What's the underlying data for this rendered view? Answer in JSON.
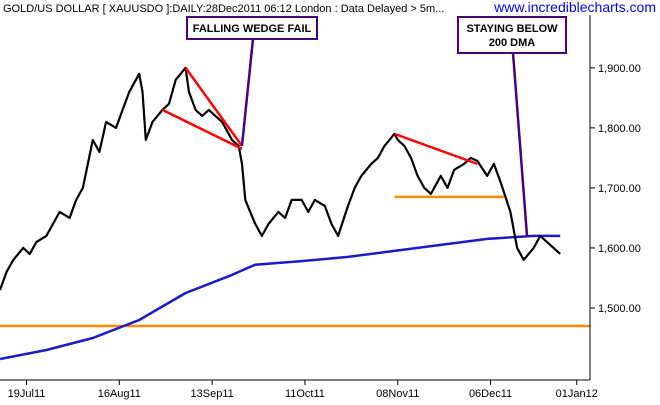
{
  "chart_data": {
    "type": "line",
    "title": "GOLD/US DOLLAR [ XAUUSDO ]:DAILY:28Dec2011 06:12 London : Data Delayed > 5m...",
    "watermark": "www.incrediblecharts.com",
    "x_tick_labels": [
      "19Jul11",
      "16Aug11",
      "13Sep11",
      "11Oct11",
      "08Nov11",
      "06Dec11",
      "01Jan12"
    ],
    "y_tick_labels": [
      "1,900.00",
      "1,800.00",
      "1,700.00",
      "1,600.00",
      "1,500.00"
    ],
    "y_ticks": [
      1900,
      1800,
      1700,
      1600,
      1500
    ],
    "ylim": [
      1380,
      1988
    ],
    "xlim": [
      "2011-07-11",
      "2012-01-05"
    ],
    "grid": false,
    "colors": {
      "price": "#000000",
      "ma": "#1a1acc",
      "trendline": "#ff0000",
      "support": "#ff8c00",
      "annotation": "#4b0082",
      "watermark": "#0000ff"
    },
    "series": [
      {
        "role": "price",
        "x": [
          "2011-07-11",
          "2011-07-13",
          "2011-07-15",
          "2011-07-18",
          "2011-07-20",
          "2011-07-22",
          "2011-07-25",
          "2011-07-27",
          "2011-07-29",
          "2011-08-01",
          "2011-08-03",
          "2011-08-05",
          "2011-08-08",
          "2011-08-10",
          "2011-08-12",
          "2011-08-15",
          "2011-08-17",
          "2011-08-19",
          "2011-08-22",
          "2011-08-23",
          "2011-08-24",
          "2011-08-26",
          "2011-08-29",
          "2011-08-31",
          "2011-09-02",
          "2011-09-05",
          "2011-09-06",
          "2011-09-08",
          "2011-09-10",
          "2011-09-12",
          "2011-09-14",
          "2011-09-16",
          "2011-09-19",
          "2011-09-21",
          "2011-09-22",
          "2011-09-23",
          "2011-09-26",
          "2011-09-28",
          "2011-09-30",
          "2011-10-03",
          "2011-10-05",
          "2011-10-07",
          "2011-10-10",
          "2011-10-12",
          "2011-10-14",
          "2011-10-17",
          "2011-10-19",
          "2011-10-21",
          "2011-10-24",
          "2011-10-26",
          "2011-10-28",
          "2011-10-31",
          "2011-11-02",
          "2011-11-04",
          "2011-11-07",
          "2011-11-08",
          "2011-11-10",
          "2011-11-12",
          "2011-11-14",
          "2011-11-16",
          "2011-11-18",
          "2011-11-21",
          "2011-11-23",
          "2011-11-25",
          "2011-11-28",
          "2011-11-30",
          "2011-12-02",
          "2011-12-05",
          "2011-12-07",
          "2011-12-09",
          "2011-12-12",
          "2011-12-14",
          "2011-12-16",
          "2011-12-19",
          "2011-12-21",
          "2011-12-23",
          "2011-12-27"
        ],
        "y": [
          1530,
          1560,
          1580,
          1600,
          1590,
          1610,
          1620,
          1640,
          1660,
          1650,
          1680,
          1700,
          1780,
          1760,
          1810,
          1800,
          1830,
          1860,
          1890,
          1860,
          1780,
          1810,
          1830,
          1840,
          1880,
          1900,
          1860,
          1830,
          1820,
          1830,
          1820,
          1810,
          1780,
          1770,
          1740,
          1680,
          1640,
          1620,
          1640,
          1660,
          1650,
          1680,
          1680,
          1660,
          1680,
          1670,
          1640,
          1620,
          1670,
          1700,
          1720,
          1740,
          1750,
          1770,
          1790,
          1780,
          1770,
          1750,
          1720,
          1700,
          1690,
          1720,
          1700,
          1730,
          1740,
          1750,
          1745,
          1720,
          1740,
          1710,
          1660,
          1600,
          1580,
          1600,
          1620,
          1610,
          1590
        ]
      },
      {
        "role": "ma",
        "x": [
          "2011-07-11",
          "2011-07-25",
          "2011-08-08",
          "2011-08-22",
          "2011-09-05",
          "2011-09-19",
          "2011-09-26",
          "2011-10-10",
          "2011-10-24",
          "2011-11-07",
          "2011-11-21",
          "2011-12-05",
          "2011-12-19",
          "2011-12-27"
        ],
        "y": [
          1415,
          1430,
          1450,
          1480,
          1525,
          1555,
          1572,
          1578,
          1585,
          1595,
          1605,
          1615,
          1620,
          1620
        ]
      }
    ],
    "trendlines": [
      {
        "color": "red",
        "from": [
          "2011-09-05",
          1900
        ],
        "to": [
          "2011-09-22",
          1770
        ]
      },
      {
        "color": "red",
        "from": [
          "2011-08-29",
          1830
        ],
        "to": [
          "2011-09-22",
          1765
        ]
      },
      {
        "color": "red",
        "from": [
          "2011-11-07",
          1790
        ],
        "to": [
          "2011-12-02",
          1740
        ]
      }
    ],
    "hlines": [
      {
        "color": "orange",
        "y": 1685,
        "from": "2011-11-07",
        "to": "2011-12-10"
      },
      {
        "color": "orange",
        "y": 1470,
        "from": "2011-07-01",
        "to": "2012-01-05"
      }
    ],
    "annotations": [
      {
        "lines": [
          "FALLING WEDGE FAIL"
        ],
        "target": [
          "2011-09-22",
          1770
        ]
      },
      {
        "lines": [
          "STAYING BELOW",
          "200 DMA"
        ],
        "target": [
          "2011-12-17",
          1620
        ]
      }
    ]
  }
}
